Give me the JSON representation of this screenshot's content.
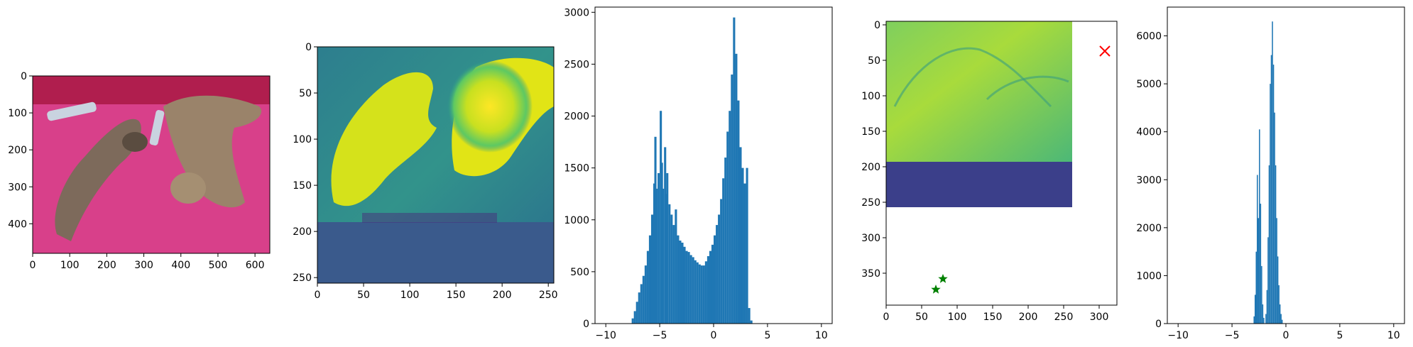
{
  "chart_data": [
    {
      "type": "image",
      "content": "photo of two tabby cats sleeping on a pink blanket with two TV remotes",
      "xticks": [
        "0",
        "100",
        "200",
        "300",
        "400",
        "500",
        "600"
      ],
      "yticks": [
        "0",
        "100",
        "200",
        "300",
        "400"
      ],
      "xlim": [
        0,
        640
      ],
      "ylim": [
        480,
        0
      ],
      "colors": {
        "blanket": "#d83f86",
        "cat_fur": "#8a7866"
      }
    },
    {
      "type": "heatmap",
      "colormap": "viridis",
      "content": "feature map (two bright yellow cat-shaped blobs on teal background; bottom rows padded)",
      "xticks": [
        "0",
        "50",
        "100",
        "150",
        "200",
        "250"
      ],
      "yticks": [
        "0",
        "50",
        "100",
        "150",
        "200",
        "250"
      ],
      "xlim": [
        0,
        256
      ],
      "ylim": [
        256,
        0
      ],
      "colors": {
        "high": "#dde318",
        "mid": "#2b8a8c",
        "pad": "#3a5a8c",
        "low": "#472d7b"
      }
    },
    {
      "type": "bar",
      "subtype": "histogram",
      "xticks": [
        "−10",
        "−5",
        "0",
        "5",
        "10"
      ],
      "yticks": [
        "0",
        "500",
        "1000",
        "1500",
        "2000",
        "2500",
        "3000"
      ],
      "xlim": [
        -11,
        11
      ],
      "ylim": [
        0,
        3050
      ],
      "color": "#1f77b4",
      "bins": [
        [
          -7.6,
          50
        ],
        [
          -7.4,
          120
        ],
        [
          -7.2,
          210
        ],
        [
          -7.0,
          300
        ],
        [
          -6.8,
          380
        ],
        [
          -6.6,
          460
        ],
        [
          -6.4,
          560
        ],
        [
          -6.2,
          700
        ],
        [
          -6.0,
          850
        ],
        [
          -5.8,
          1050
        ],
        [
          -5.6,
          1350
        ],
        [
          -5.5,
          1800
        ],
        [
          -5.4,
          1300
        ],
        [
          -5.2,
          1450
        ],
        [
          -5.0,
          2050
        ],
        [
          -4.9,
          1550
        ],
        [
          -4.8,
          1300
        ],
        [
          -4.6,
          1700
        ],
        [
          -4.5,
          1250
        ],
        [
          -4.4,
          1450
        ],
        [
          -4.2,
          1150
        ],
        [
          -4.0,
          1050
        ],
        [
          -3.8,
          950
        ],
        [
          -3.6,
          1100
        ],
        [
          -3.4,
          850
        ],
        [
          -3.2,
          800
        ],
        [
          -3.0,
          780
        ],
        [
          -2.8,
          740
        ],
        [
          -2.6,
          700
        ],
        [
          -2.4,
          690
        ],
        [
          -2.2,
          660
        ],
        [
          -2.0,
          640
        ],
        [
          -1.8,
          610
        ],
        [
          -1.6,
          590
        ],
        [
          -1.4,
          570
        ],
        [
          -1.2,
          560
        ],
        [
          -1.0,
          560
        ],
        [
          -0.8,
          600
        ],
        [
          -0.6,
          650
        ],
        [
          -0.4,
          700
        ],
        [
          -0.2,
          760
        ],
        [
          0.0,
          850
        ],
        [
          0.2,
          950
        ],
        [
          0.4,
          1050
        ],
        [
          0.6,
          1200
        ],
        [
          0.8,
          1400
        ],
        [
          1.0,
          1600
        ],
        [
          1.2,
          1850
        ],
        [
          1.4,
          2050
        ],
        [
          1.6,
          2400
        ],
        [
          1.8,
          2950
        ],
        [
          2.0,
          2600
        ],
        [
          2.2,
          2150
        ],
        [
          2.4,
          1700
        ],
        [
          2.6,
          1500
        ],
        [
          2.8,
          1350
        ],
        [
          3.0,
          1500
        ],
        [
          3.2,
          150
        ],
        [
          3.4,
          30
        ]
      ]
    },
    {
      "type": "heatmap",
      "colormap": "viridis",
      "content": "feature image with scatter markers overlaid",
      "xticks": [
        "0",
        "50",
        "100",
        "150",
        "200",
        "250",
        "300"
      ],
      "yticks": [
        "0",
        "50",
        "100",
        "150",
        "200",
        "250",
        "300",
        "350"
      ],
      "xlim": [
        0,
        325
      ],
      "ylim": [
        395,
        -5
      ],
      "image_extent": {
        "x": [
          0,
          256
        ],
        "y": [
          0,
          256
        ],
        "bright_rows": [
          0,
          190
        ]
      },
      "colors": {
        "bright": "#8fd15a",
        "dark": "#3b3f8a"
      },
      "markers": [
        {
          "shape": "x",
          "color": "#ff0000",
          "x": 308,
          "y": 37
        },
        {
          "shape": "star",
          "color": "#008000",
          "x": 80,
          "y": 358
        },
        {
          "shape": "star",
          "color": "#008000",
          "x": 70,
          "y": 373
        }
      ]
    },
    {
      "type": "bar",
      "subtype": "histogram",
      "xticks": [
        "−10",
        "−5",
        "0",
        "5",
        "10"
      ],
      "yticks": [
        "0",
        "1000",
        "2000",
        "3000",
        "4000",
        "5000",
        "6000"
      ],
      "xlim": [
        -11,
        11
      ],
      "ylim": [
        0,
        6600
      ],
      "color": "#1f77b4",
      "bins": [
        [
          -3.0,
          150
        ],
        [
          -2.9,
          600
        ],
        [
          -2.8,
          1500
        ],
        [
          -2.7,
          3100
        ],
        [
          -2.6,
          2200
        ],
        [
          -2.5,
          4050
        ],
        [
          -2.4,
          2500
        ],
        [
          -2.3,
          1200
        ],
        [
          -2.2,
          400
        ],
        [
          -2.1,
          120
        ],
        [
          -1.9,
          200
        ],
        [
          -1.8,
          700
        ],
        [
          -1.7,
          1800
        ],
        [
          -1.6,
          3300
        ],
        [
          -1.5,
          5000
        ],
        [
          -1.4,
          5600
        ],
        [
          -1.3,
          6300
        ],
        [
          -1.2,
          5400
        ],
        [
          -1.1,
          4400
        ],
        [
          -1.0,
          3300
        ],
        [
          -0.9,
          2200
        ],
        [
          -0.8,
          1400
        ],
        [
          -0.7,
          800
        ],
        [
          -0.6,
          400
        ],
        [
          -0.5,
          200
        ],
        [
          -0.4,
          80
        ]
      ]
    }
  ]
}
